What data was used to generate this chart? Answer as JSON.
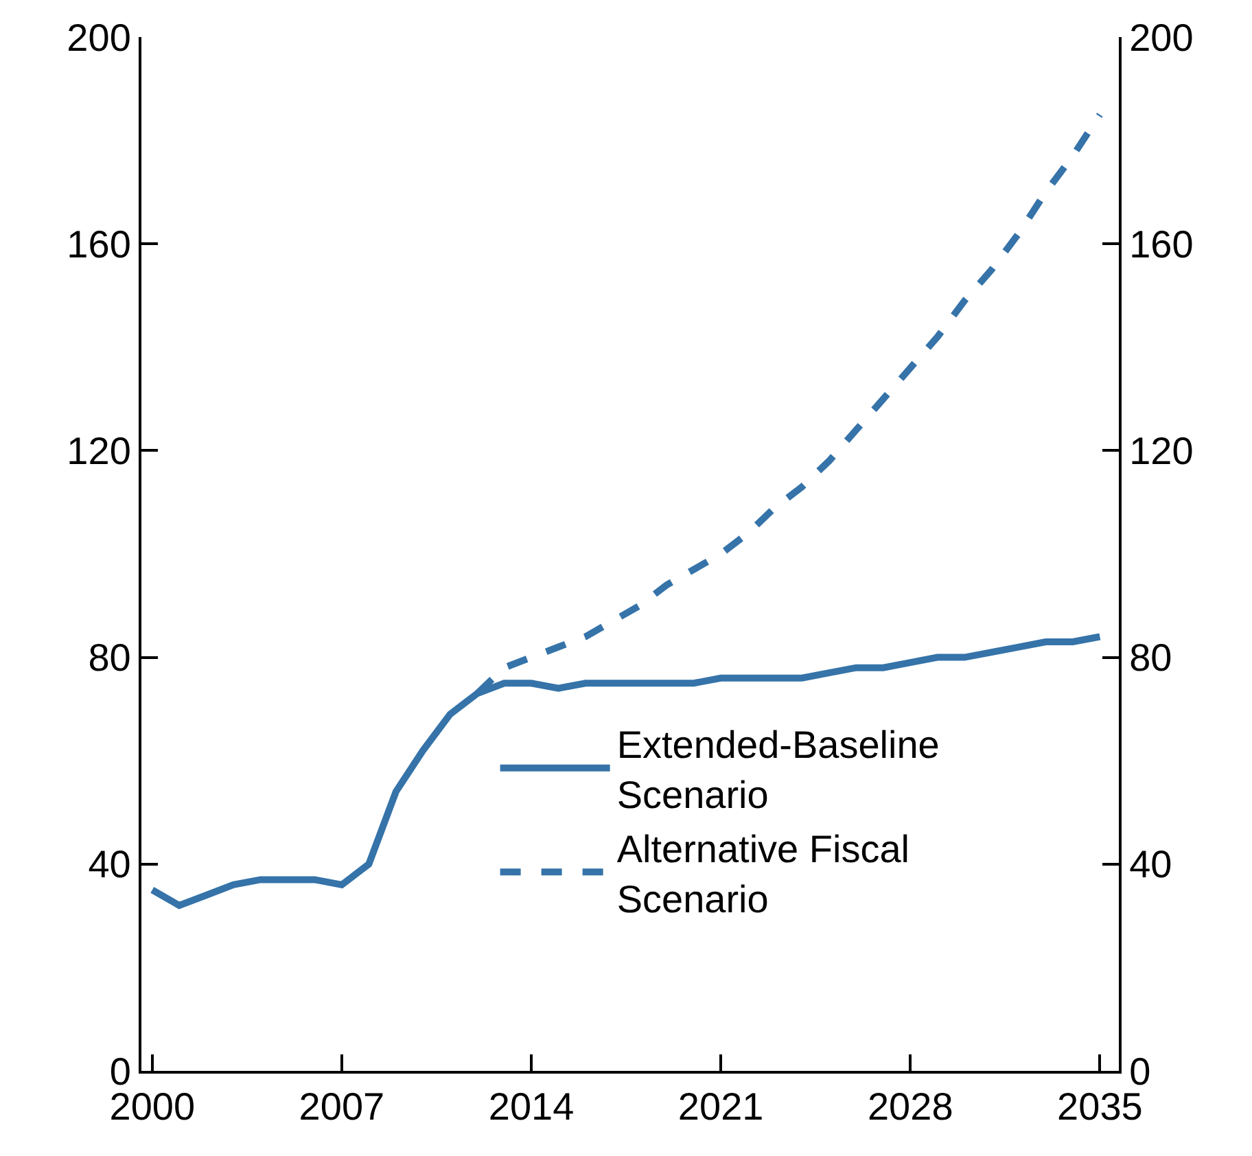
{
  "chart_data": {
    "type": "line",
    "xlim": [
      1999.6,
      2035.7
    ],
    "xticks": [
      2000,
      2007,
      2014,
      2021,
      2028,
      2035
    ],
    "ylim": [
      0,
      200
    ],
    "yticks": [
      0,
      40,
      80,
      120,
      160,
      200
    ],
    "y2lim": [
      0,
      200
    ],
    "y2ticks": [
      0,
      40,
      80,
      120,
      160,
      200
    ],
    "legend": "right",
    "marker": "none",
    "series": [
      {
        "name": "Extended-Baseline Scenario",
        "color": "#3573a9",
        "line_style": "solid",
        "x": [
          2000,
          2001,
          2002,
          2003,
          2004,
          2005,
          2006,
          2007,
          2008,
          2009,
          2010,
          2011,
          2012,
          2013,
          2014,
          2015,
          2016,
          2017,
          2018,
          2019,
          2020,
          2021,
          2022,
          2023,
          2024,
          2025,
          2026,
          2027,
          2028,
          2029,
          2030,
          2031,
          2032,
          2033,
          2034,
          2035
        ],
        "values": [
          35,
          32,
          34,
          36,
          37,
          37,
          37,
          36,
          40,
          54,
          62,
          69,
          73,
          75,
          75,
          74,
          75,
          75,
          75,
          75,
          75,
          76,
          76,
          76,
          76,
          77,
          78,
          78,
          79,
          80,
          80,
          81,
          82,
          83,
          83,
          84
        ]
      },
      {
        "name": "Alternative Fiscal Scenario",
        "color": "#3573a9",
        "line_style": "dashed",
        "x": [
          2012,
          2013,
          2014,
          2015,
          2016,
          2017,
          2018,
          2019,
          2020,
          2021,
          2022,
          2023,
          2024,
          2025,
          2026,
          2027,
          2028,
          2029,
          2030,
          2031,
          2032,
          2033,
          2034,
          2035
        ],
        "values": [
          73,
          78,
          80,
          82,
          84,
          87,
          90,
          94,
          97,
          100,
          104,
          109,
          113,
          118,
          124,
          130,
          136,
          142,
          149,
          155,
          162,
          170,
          177,
          185
        ]
      }
    ]
  }
}
